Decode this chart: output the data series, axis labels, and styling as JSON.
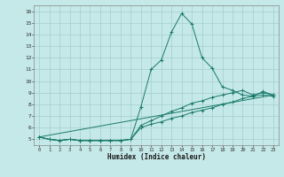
{
  "title": "",
  "xlabel": "Humidex (Indice chaleur)",
  "ylabel": "",
  "bg_color": "#c5e8e8",
  "line_color": "#1a7a6a",
  "xlim": [
    -0.5,
    23.5
  ],
  "ylim": [
    4.5,
    16.5
  ],
  "xticks": [
    0,
    1,
    2,
    3,
    4,
    5,
    6,
    7,
    8,
    9,
    10,
    11,
    12,
    13,
    14,
    15,
    16,
    17,
    18,
    19,
    20,
    21,
    22,
    23
  ],
  "yticks": [
    5,
    6,
    7,
    8,
    9,
    10,
    11,
    12,
    13,
    14,
    15,
    16
  ],
  "series": [
    {
      "x": [
        0,
        1,
        2,
        3,
        4,
        5,
        6,
        7,
        8,
        9,
        10,
        11,
        12,
        13,
        14,
        15,
        16,
        17,
        18,
        19,
        20,
        21,
        22,
        23
      ],
      "y": [
        5.2,
        5.0,
        4.9,
        5.0,
        4.9,
        4.9,
        4.9,
        4.9,
        4.9,
        5.0,
        7.8,
        11.0,
        11.8,
        14.2,
        15.8,
        14.9,
        12.0,
        11.1,
        9.5,
        9.2,
        8.8,
        8.7,
        9.1,
        8.8
      ]
    },
    {
      "x": [
        0,
        1,
        2,
        3,
        4,
        5,
        6,
        7,
        8,
        9,
        10,
        11,
        12,
        13,
        14,
        15,
        16,
        17,
        18,
        19,
        20,
        21,
        22,
        23
      ],
      "y": [
        5.2,
        5.0,
        4.9,
        5.0,
        4.9,
        4.9,
        4.9,
        4.9,
        4.9,
        5.0,
        6.0,
        6.3,
        6.5,
        6.8,
        7.0,
        7.3,
        7.5,
        7.7,
        8.0,
        8.2,
        8.5,
        8.7,
        8.8,
        8.7
      ]
    },
    {
      "x": [
        0,
        1,
        2,
        3,
        4,
        5,
        6,
        7,
        8,
        9,
        10,
        11,
        12,
        13,
        14,
        15,
        16,
        17,
        18,
        19,
        20,
        21,
        22,
        23
      ],
      "y": [
        5.2,
        5.0,
        4.9,
        5.0,
        4.9,
        4.9,
        4.9,
        4.9,
        4.9,
        5.0,
        6.2,
        6.6,
        7.0,
        7.4,
        7.7,
        8.1,
        8.3,
        8.6,
        8.8,
        9.0,
        9.2,
        8.8,
        9.0,
        8.8
      ]
    },
    {
      "x": [
        0,
        23
      ],
      "y": [
        5.2,
        8.8
      ]
    }
  ]
}
